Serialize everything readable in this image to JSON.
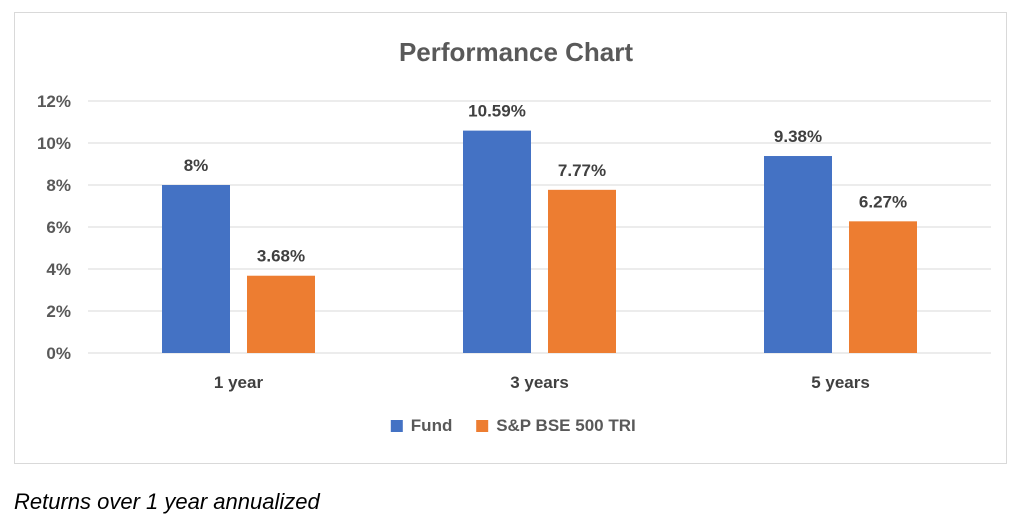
{
  "chart_data": {
    "type": "bar",
    "title": "Performance Chart",
    "categories": [
      "1 year",
      "3 years",
      "5 years"
    ],
    "series": [
      {
        "name": "Fund",
        "values": [
          8,
          10.59,
          9.38
        ],
        "labels": [
          "8%",
          "10.59%",
          "9.38%"
        ],
        "color": "#4472c4"
      },
      {
        "name": "S&P BSE 500 TRI",
        "values": [
          3.68,
          7.77,
          6.27
        ],
        "labels": [
          "3.68%",
          "7.77%",
          "6.27%"
        ],
        "color": "#ed7d31"
      }
    ],
    "ylim": [
      0,
      12
    ],
    "yticks": [
      "0%",
      "2%",
      "4%",
      "6%",
      "8%",
      "10%",
      "12%"
    ],
    "grid": true,
    "legend_position": "bottom"
  },
  "caption": "Returns over 1 year annualized"
}
